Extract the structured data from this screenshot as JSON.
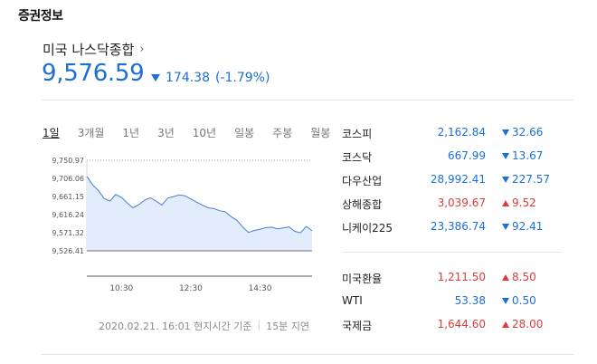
{
  "section_title": "증권정보",
  "index": {
    "name": "미국 나스닥종합",
    "value": "9,576.59",
    "change": "174.38",
    "change_pct": "(-1.79%)",
    "direction": "down"
  },
  "tabs": [
    "1일",
    "3개월",
    "1년",
    "3년",
    "10년",
    "일봉",
    "주봉",
    "월봉"
  ],
  "active_tab": "1일",
  "footnote": {
    "timestamp": "2020.02.21. 16:01 현지시간 기준",
    "delay": "15분 지연"
  },
  "colors": {
    "down": "#1b6fd6",
    "up": "#e03a3a"
  },
  "markets": [
    {
      "name": "코스피",
      "price": "2,162.84",
      "change": "32.66",
      "dir": "down"
    },
    {
      "name": "코스닥",
      "price": "667.99",
      "change": "13.67",
      "dir": "down"
    },
    {
      "name": "다우산업",
      "price": "28,992.41",
      "change": "227.57",
      "dir": "down"
    },
    {
      "name": "상해종합",
      "price": "3,039.67",
      "change": "9.52",
      "dir": "up"
    },
    {
      "name": "니케이225",
      "price": "23,386.74",
      "change": "92.41",
      "dir": "down"
    }
  ],
  "commodities": [
    {
      "name": "미국환율",
      "price": "1,211.50",
      "change": "8.50",
      "dir": "up"
    },
    {
      "name": "WTI",
      "price": "53.38",
      "change": "0.50",
      "dir": "down"
    },
    {
      "name": "국제금",
      "price": "1,644.60",
      "change": "28.00",
      "dir": "up"
    }
  ],
  "chart_data": {
    "type": "area",
    "title": "",
    "xlabel": "",
    "ylabel": "",
    "y_ticks": [
      "9,750.97",
      "9,706.06",
      "9,661.15",
      "9,616.24",
      "9,571.32",
      "9,526.41"
    ],
    "y_tick_values": [
      9750.97,
      9706.06,
      9661.15,
      9616.24,
      9571.32,
      9526.41
    ],
    "x_ticks": [
      "10:30",
      "12:30",
      "14:30"
    ],
    "x_tick_values": [
      "10:30",
      "12:30",
      "14:30"
    ],
    "x_range": [
      "09:30",
      "16:00"
    ],
    "ylim": [
      9526.41,
      9750.97
    ],
    "grid": false,
    "series": [
      {
        "x": [
          "09:30",
          "09:40",
          "09:50",
          "10:00",
          "10:10",
          "10:20",
          "10:30",
          "10:40",
          "10:50",
          "11:00",
          "11:10",
          "11:20",
          "11:30",
          "11:40",
          "11:50",
          "12:00",
          "12:10",
          "12:20",
          "12:30",
          "12:40",
          "12:50",
          "13:00",
          "13:10",
          "13:20",
          "13:30",
          "13:40",
          "13:50",
          "14:00",
          "14:10",
          "14:20",
          "14:30",
          "14:40",
          "14:50",
          "15:00",
          "15:10",
          "15:20",
          "15:30",
          "15:40",
          "15:50",
          "16:00"
        ],
        "y": [
          9711,
          9690,
          9676,
          9656,
          9650,
          9666,
          9659,
          9645,
          9633,
          9641,
          9652,
          9658,
          9650,
          9640,
          9657,
          9661,
          9665,
          9663,
          9655,
          9647,
          9640,
          9633,
          9631,
          9626,
          9623,
          9611,
          9602,
          9585,
          9572,
          9577,
          9580,
          9584,
          9585,
          9581,
          9583,
          9586,
          9575,
          9571,
          9587,
          9576
        ]
      }
    ]
  }
}
